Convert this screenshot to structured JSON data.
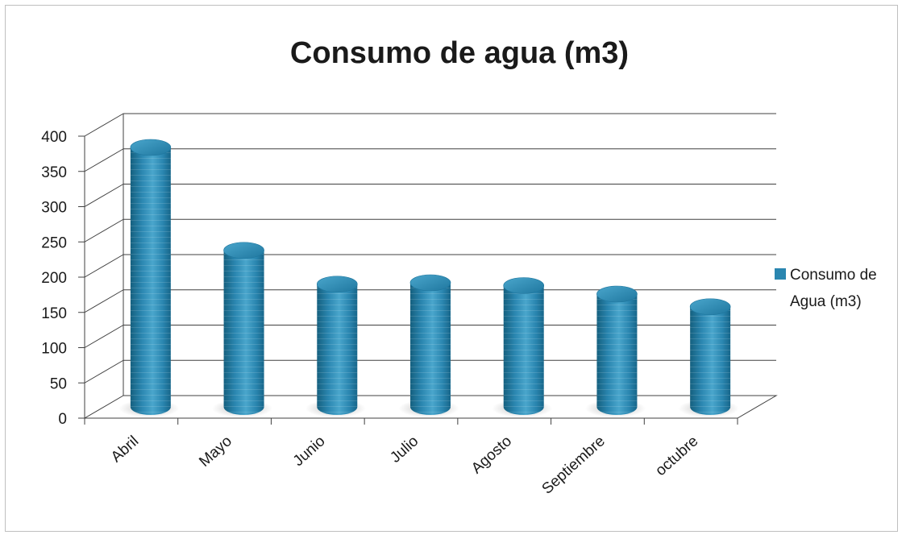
{
  "chart_data": {
    "type": "bar",
    "title": "Consumo de agua (m3)",
    "categories": [
      "Abril",
      "Mayo",
      "Junio",
      "Julio",
      "Agosto",
      "Septiembre",
      "octubre"
    ],
    "series": [
      {
        "name": "Consumo de Agua (m3)",
        "values": [
          368,
          222,
          174,
          176,
          172,
          160,
          142
        ]
      }
    ],
    "yticks": [
      0,
      50,
      100,
      150,
      200,
      250,
      300,
      350,
      400
    ],
    "ylim": [
      0,
      400
    ],
    "grid": true,
    "legend_position": "right",
    "legend_lines": [
      "Consumo de",
      "Agua (m3)"
    ],
    "bar_style": "3d-cylinder",
    "colors": {
      "bar": "#2a86b0",
      "bar_dark": "#15607f",
      "bar_light": "#6cc0dd",
      "grid": "#404040",
      "frame": "#bfbfbf"
    }
  }
}
